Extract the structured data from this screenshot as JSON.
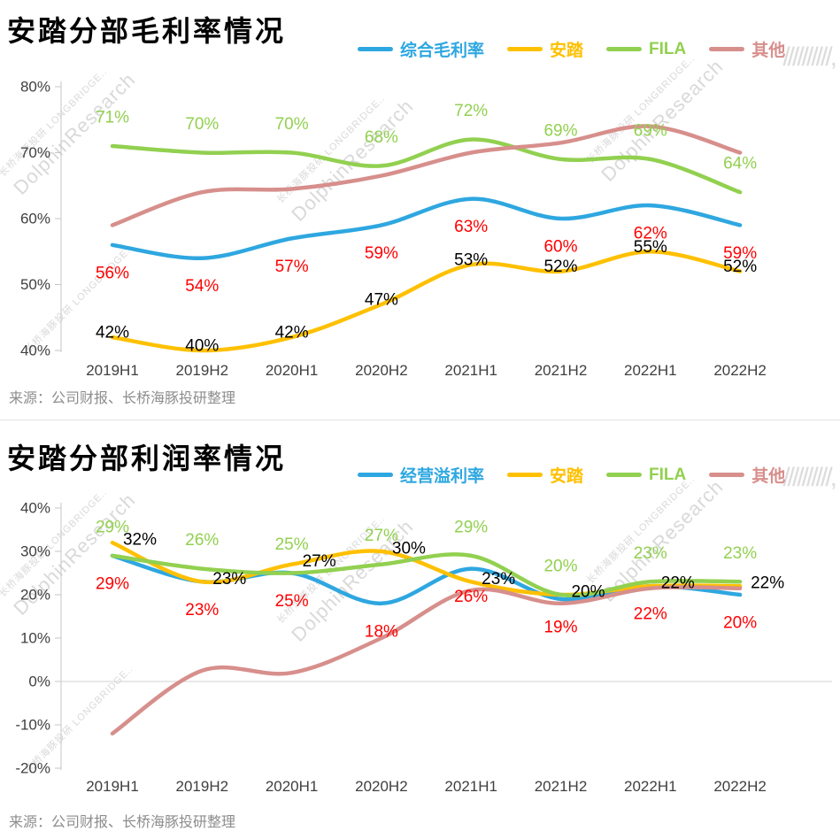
{
  "watermark": {
    "brand": "DolphinResearch",
    "sub": "长桥海豚投研 LONGBRIDGE..",
    "slashes": "//////////,"
  },
  "chart_data": [
    {
      "type": "line",
      "title": "安踏分部毛利率情况",
      "source": "来源：公司财报、长桥海豚投研整理",
      "categories": [
        "2019H1",
        "2019H2",
        "2020H1",
        "2020H2",
        "2021H1",
        "2021H2",
        "2022H1",
        "2022H2"
      ],
      "ylim": [
        40,
        80
      ],
      "yticks": [
        "80%",
        "70%",
        "60%",
        "50%",
        "40%"
      ],
      "xlabel": "",
      "ylabel": "",
      "grid": false,
      "legend_position": "top-right",
      "series": [
        {
          "name": "综合毛利率",
          "color": "#2EA7E0",
          "values": [
            56,
            54,
            57,
            59,
            63,
            60,
            62,
            59
          ],
          "show_labels": true,
          "label_color": "#FF0000",
          "label_dx": 0,
          "label_dy": 32
        },
        {
          "name": "安踏",
          "color": "#FFC000",
          "values": [
            42,
            40,
            42,
            47,
            53,
            52,
            55,
            52
          ],
          "show_labels": true,
          "label_color": "#000000",
          "label_dx": 0,
          "label_dy": -5
        },
        {
          "name": "FILA",
          "color": "#92D050",
          "values": [
            71,
            70,
            70,
            68,
            72,
            69,
            69,
            64
          ],
          "show_labels": true,
          "label_color": "#92D050",
          "label_dx": 0,
          "label_dy": -32
        },
        {
          "name": "其他",
          "color": "#D78F8C",
          "values": [
            59,
            64,
            64.5,
            66.5,
            70,
            71.5,
            74,
            70
          ],
          "show_labels": false
        }
      ]
    },
    {
      "type": "line",
      "title": "安踏分部利润率情况",
      "source": "来源：公司财报、长桥海豚投研整理",
      "categories": [
        "2019H1",
        "2019H2",
        "2020H1",
        "2020H2",
        "2021H1",
        "2021H2",
        "2022H1",
        "2022H2"
      ],
      "ylim": [
        -20,
        40
      ],
      "yticks": [
        "40%",
        "30%",
        "20%",
        "10%",
        "0%",
        "-10%",
        "-20%"
      ],
      "xlabel": "",
      "ylabel": "",
      "grid": false,
      "legend_position": "top-right",
      "series": [
        {
          "name": "经营溢利率",
          "color": "#2EA7E0",
          "values": [
            29,
            23,
            25,
            18,
            26,
            19,
            22,
            20
          ],
          "show_labels": true,
          "label_color": "#FF0000",
          "label_dx": 0,
          "label_dy": 32
        },
        {
          "name": "安踏",
          "color": "#FFC000",
          "values": [
            32,
            23,
            27,
            30,
            23,
            20,
            22,
            22
          ],
          "show_labels": true,
          "label_color": "#000000",
          "label_dx": 31,
          "label_dy": -3
        },
        {
          "name": "FILA",
          "color": "#92D050",
          "values": [
            29,
            26,
            25,
            27,
            29,
            20,
            23,
            23
          ],
          "show_labels": true,
          "label_color": "#92D050",
          "label_dx": 0,
          "label_dy": -32
        },
        {
          "name": "其他",
          "color": "#D78F8C",
          "values": [
            -12,
            2.5,
            2,
            10,
            21,
            18,
            21.5,
            21.5
          ],
          "show_labels": false
        }
      ]
    }
  ]
}
